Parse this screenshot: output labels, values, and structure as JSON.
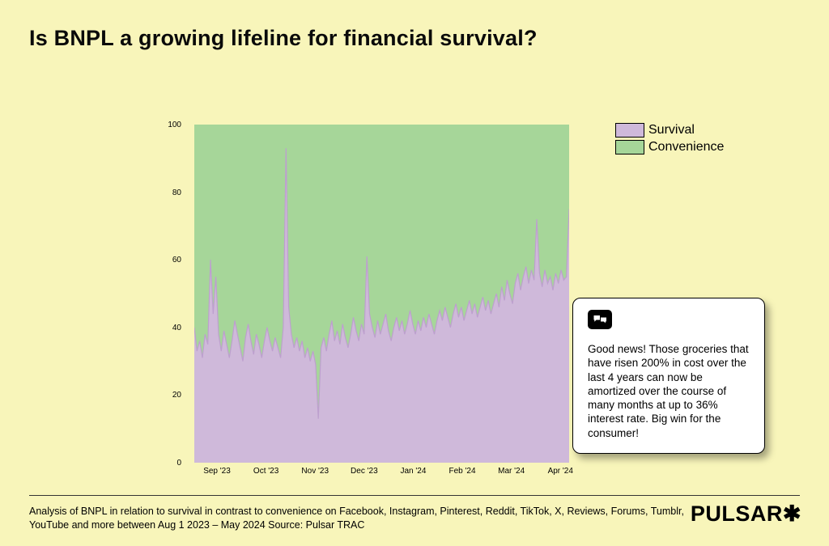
{
  "title": "Is BNPL a growing lifeline for financial survival?",
  "colors": {
    "background": "#f8f5ba",
    "survival": "#cfb9da",
    "survival_stroke": "#bda0ce",
    "convenience": "#a6d699",
    "callout_bg": "#ffffff"
  },
  "chart_data": {
    "type": "area",
    "stacked": "percent",
    "title": "Is BNPL a growing lifeline for financial survival?",
    "x_tick_labels": [
      "Sep '23",
      "Oct '23",
      "Nov '23",
      "Dec '23",
      "Jan '24",
      "Feb '24",
      "Mar '24",
      "Apr '24"
    ],
    "x_range": [
      "Aug 1 2023",
      "May 2024"
    ],
    "y_ticks": [
      0,
      20,
      40,
      60,
      80,
      100
    ],
    "y_range": [
      0,
      100
    ],
    "grid": false,
    "legend_position": "top-right",
    "legend": [
      {
        "label": "Survival",
        "color": "#cfb9da"
      },
      {
        "label": "Convenience",
        "color": "#a6d699"
      }
    ],
    "stacking_note": "100% stacked area: Convenience = 100 - Survival at every point",
    "series": [
      {
        "name": "Survival",
        "values": [
          40,
          33,
          36,
          31,
          38,
          35,
          60,
          44,
          55,
          38,
          33,
          39,
          35,
          31,
          36,
          42,
          38,
          34,
          30,
          37,
          41,
          36,
          32,
          38,
          35,
          31,
          36,
          40,
          36,
          33,
          37,
          34,
          31,
          40,
          93,
          46,
          38,
          34,
          37,
          33,
          36,
          31,
          34,
          30,
          33,
          29,
          13,
          34,
          37,
          33,
          38,
          42,
          36,
          39,
          35,
          41,
          37,
          34,
          38,
          43,
          39,
          36,
          41,
          38,
          61,
          44,
          40,
          37,
          42,
          38,
          41,
          44,
          39,
          36,
          40,
          43,
          39,
          42,
          38,
          41,
          45,
          41,
          38,
          42,
          39,
          43,
          40,
          44,
          41,
          38,
          42,
          45,
          42,
          46,
          43,
          40,
          44,
          47,
          43,
          46,
          42,
          45,
          48,
          44,
          47,
          43,
          46,
          49,
          45,
          48,
          44,
          47,
          50,
          46,
          52,
          48,
          54,
          50,
          47,
          53,
          56,
          51,
          55,
          58,
          53,
          57,
          54,
          72,
          56,
          52,
          57,
          53,
          55,
          51,
          56,
          53,
          57,
          54,
          55,
          75
        ]
      }
    ]
  },
  "callout": {
    "icon": "speech-bubbles-icon",
    "text": "Good news! Those groceries that have risen 200% in cost over the last 4 years can now be amortized over the course of many months at up to 36% interest rate. Big win for the consumer!"
  },
  "footer": {
    "note": "Analysis of BNPL in relation to survival in contrast to convenience on Facebook, Instagram, Pinterest, Reddit, TikTok, X, Reviews, Forums, Tumblr, YouTube and more between Aug 1 2023  – May 2024  Source: Pulsar TRAC",
    "logo": "PULSAR✱"
  }
}
